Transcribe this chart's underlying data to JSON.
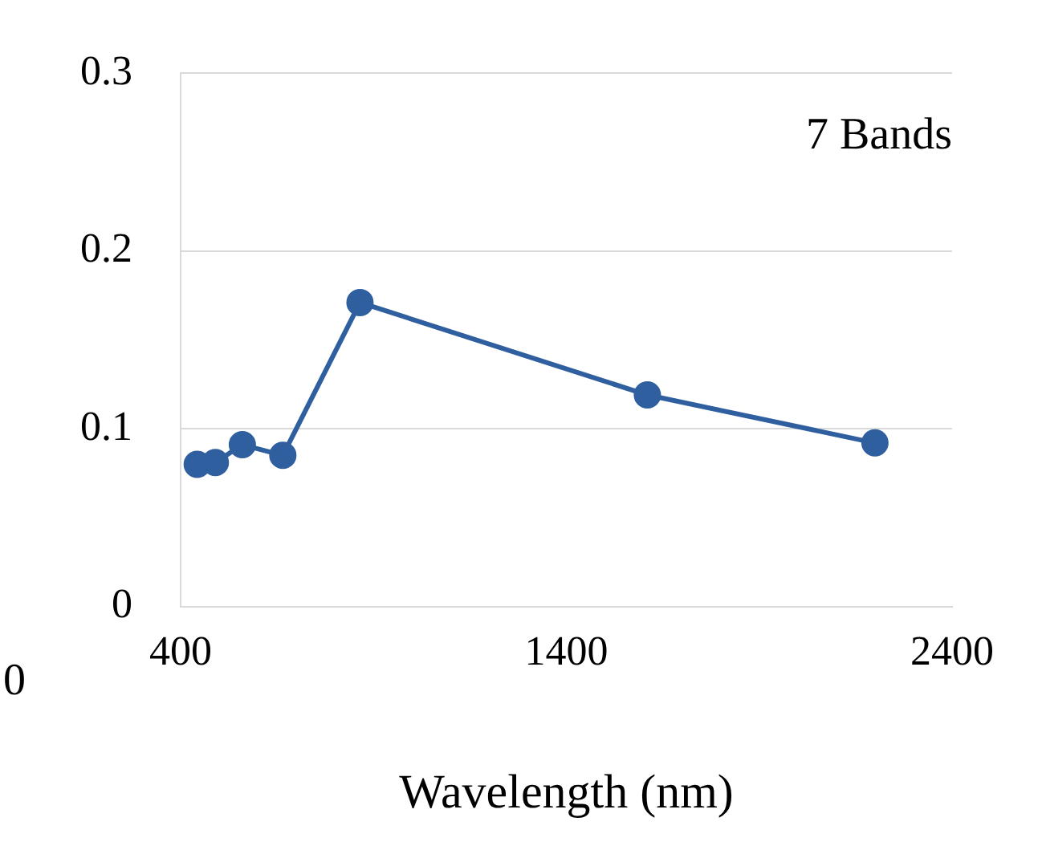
{
  "chart_data": {
    "type": "line",
    "xlabel": "Wavelength (nm)",
    "annotations": [
      "7 Bands",
      "0"
    ],
    "x": [
      443,
      490,
      560,
      665,
      865,
      1610,
      2200
    ],
    "series": [
      {
        "color": "#2f5f9e",
        "values": [
          0.08,
          0.081,
          0.091,
          0.085,
          0.171,
          0.119,
          0.092
        ]
      }
    ],
    "xlim": [
      400,
      2400
    ],
    "xticks": [
      400,
      1400,
      2400
    ],
    "ylim": [
      0,
      0.3
    ],
    "yticks": [
      0,
      0.1,
      0.2,
      0.3
    ],
    "grid": "y",
    "legend": false,
    "marker": "circle",
    "line_style": "solid"
  }
}
